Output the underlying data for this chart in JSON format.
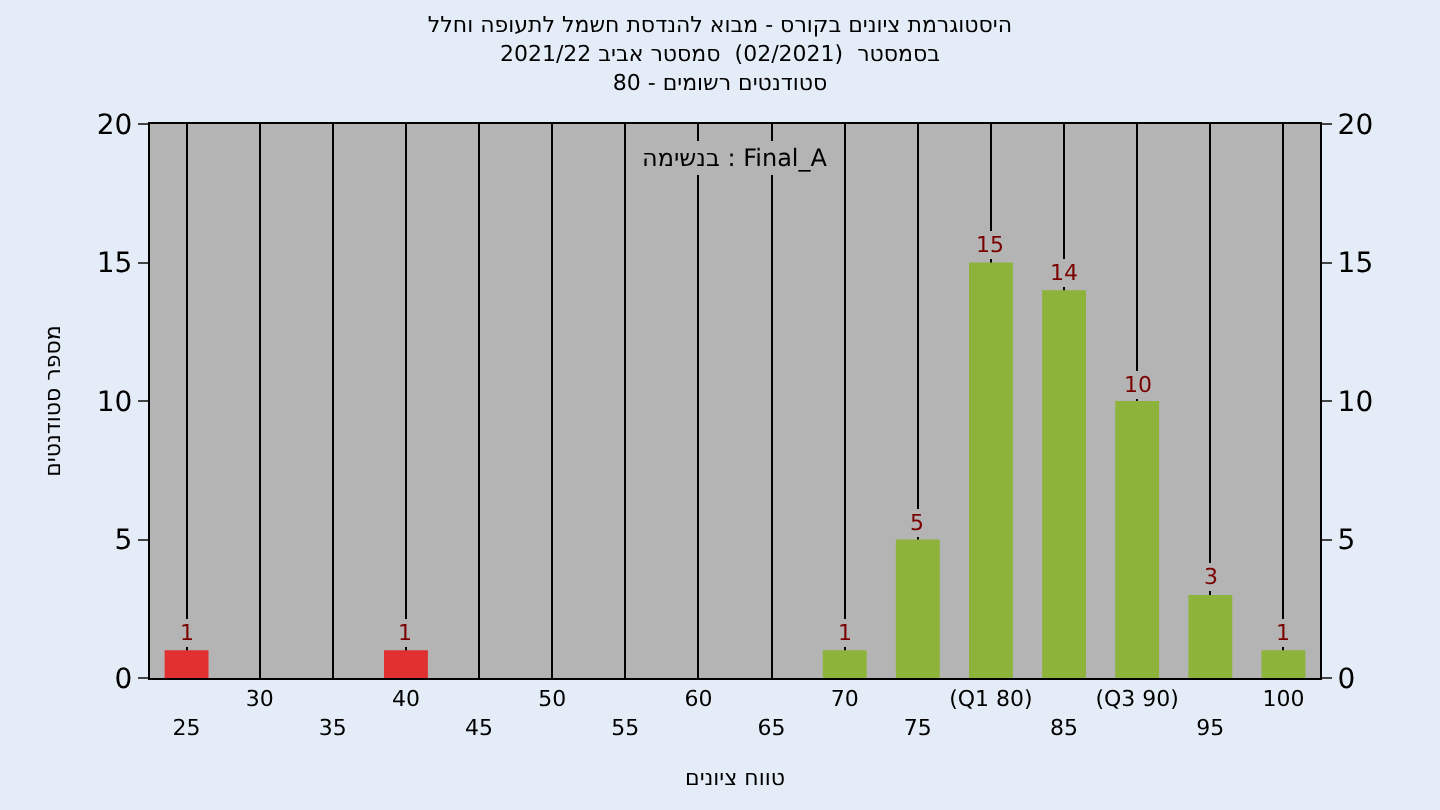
{
  "chart_data": {
    "type": "bar",
    "title": "היסטוגרמת ציונים בקורס - מבוא להנדסת חשמל לתעופה וחלל\nבסמסטר  (02/2021)  סמסטר אביב 2021/22\nסטודנטים רשומים - 80",
    "xlabel": "טווח ציונים",
    "ylabel": "מספר סטודנטים",
    "annotations": [
      "בנשימה : Final_A"
    ],
    "categories": [
      "25",
      "30",
      "35",
      "40",
      "45",
      "50",
      "55",
      "60",
      "65",
      "70",
      "75",
      "(Q1 80)",
      "85",
      "(Q3 90)",
      "95",
      "100"
    ],
    "values": [
      1,
      0,
      0,
      1,
      0,
      0,
      0,
      0,
      0,
      1,
      5,
      15,
      14,
      10,
      3,
      1
    ],
    "colors": [
      "#e03030",
      "#e03030",
      "#e03030",
      "#e03030",
      "#e03030",
      "#e03030",
      "#8db33a",
      "#8db33a",
      "#8db33a",
      "#8db33a",
      "#8db33a",
      "#8db33a",
      "#8db33a",
      "#8db33a",
      "#8db33a",
      "#8db33a"
    ],
    "value_labels": [
      "1",
      null,
      null,
      "1",
      null,
      null,
      null,
      null,
      null,
      "1",
      "5",
      "15",
      "14",
      "10",
      "3",
      "1"
    ],
    "ylim": [
      0,
      20
    ],
    "yticks": [
      0,
      5,
      10,
      15,
      20
    ],
    "y2lim": [
      0,
      20
    ],
    "y2ticks": [
      0,
      5,
      10,
      15,
      20
    ],
    "grid": "x"
  }
}
